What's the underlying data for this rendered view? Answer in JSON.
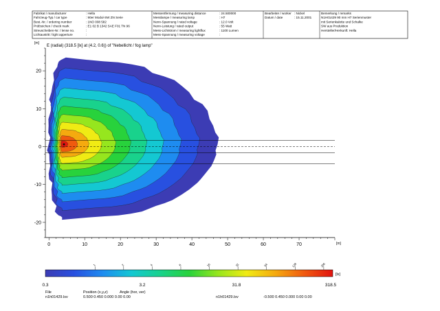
{
  "header": {
    "col1": [
      {
        "label": "Fabrikat / manufacturer",
        "value": ": Hella"
      },
      {
        "label": "Fahrzeug-Typ / car type",
        "value": ": 90er Modul-SW ZN Serie"
      },
      {
        "label": "Best.-Nr. / ordering number",
        "value": ": 1NO 008 582"
      },
      {
        "label": "Prüfzeichen / check mark",
        "value": ": E1 02 B 1342 SAE F01 TN 96"
      },
      {
        "label": "Streuscheiben-Nr. / lense no.",
        "value": ":"
      },
      {
        "label": "Lichtaustritt / light apperture",
        "value": ":"
      }
    ],
    "col2": [
      {
        "label": "Messentfernung / measuring distance",
        "value": ": 24.500000"
      },
      {
        "label": "Messlampe / measuring lamp",
        "value": ": H7"
      },
      {
        "label": "Nenn-Spannung / rated voltage",
        "value": ": 12.0 Volt"
      },
      {
        "label": "Nenn-Leistung / rated output",
        "value": ": 55 Watt"
      },
      {
        "label": "Mess-Lichtstrom / measuring lightflux",
        "value": ": 1100 Lumen"
      },
      {
        "label": "Mess-Spannung / measuring voltage",
        "value": ":"
      }
    ],
    "col3": [
      {
        "label": "Bearbeiter / worker",
        "value": ": Nickel"
      },
      {
        "label": "Datum / date",
        "value": ": 15.11.2001"
      }
    ],
    "col4": [
      "Bemerkung / remarks",
      "N1H01429 90 mm H7 Serienmuster",
      "mit Serienkalotte und Schalke",
      "SW aus Produktion",
      "Hersteller/Herkunft: Hella"
    ]
  },
  "chart_data": {
    "type": "heatmap",
    "title": "E (radial) (318.5 [lx] at (4.2, 0.6)) of \"Nebellicht / fog lamp\"",
    "xlabel": "[m]",
    "ylabel": "[m]",
    "xlim": [
      -1,
      80
    ],
    "ylim": [
      -24,
      26
    ],
    "x_ticks": [
      0,
      10,
      20,
      30,
      40,
      50,
      60,
      70
    ],
    "y_ticks": [
      -20,
      -10,
      0,
      10,
      20
    ],
    "max_value": 318.5,
    "max_position": [
      4.2,
      0.6
    ],
    "unit": "[lx]",
    "contour_levels": [
      1,
      2,
      4,
      8,
      16,
      32,
      64,
      128,
      256
    ],
    "colorbar": {
      "min_label": "0.3",
      "mid_label1": "3.2",
      "mid_label2": "31.8",
      "max_label": "318.5",
      "unit": "[lx]",
      "colors": [
        "#3c3cb4",
        "#2850e0",
        "#1e8cf0",
        "#14c8d2",
        "#19d28c",
        "#28d23c",
        "#96e61e",
        "#f0eb14",
        "#f5aa0f",
        "#f05a0f",
        "#e1140f"
      ]
    },
    "hlines_y": [
      1.6,
      -1.6,
      0,
      -4.5
    ]
  },
  "footer": {
    "file_label": "File",
    "file1": "n1h01429.lsv",
    "pos_label": "Position (x,y,z)",
    "angle_label": "Angle (hor, ver)",
    "values1": "0.500  0.450  0.000  0.00  0.00",
    "file2": "n1h01429.lsv",
    "values2": "-0.500  0.450  0.000  0.00  0.00"
  }
}
